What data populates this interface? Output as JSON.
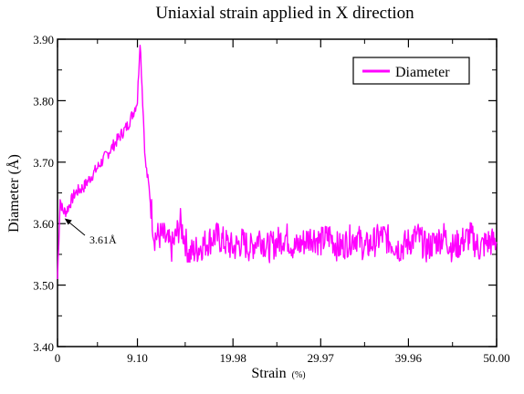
{
  "chart_data": {
    "type": "line",
    "title": "Uniaxial strain applied in X direction",
    "xlabel": "Strain",
    "xlabel_unit": "(%)",
    "ylabel": "Diameter (Å)",
    "xlim": [
      0,
      50
    ],
    "ylim": [
      3.4,
      3.9
    ],
    "x_ticks": [
      0,
      9.1,
      19.98,
      29.97,
      39.96,
      50.0
    ],
    "x_tick_labels": [
      "0",
      "9.10",
      "19.98",
      "29.97",
      "39.96",
      "50.00"
    ],
    "y_ticks": [
      3.4,
      3.5,
      3.6,
      3.7,
      3.8,
      3.9
    ],
    "y_tick_labels": [
      "3.40",
      "3.50",
      "3.60",
      "3.70",
      "3.80",
      "3.90"
    ],
    "grid": false,
    "legend_position": "top-right",
    "series": [
      {
        "name": "Diameter",
        "color": "#ff00ff",
        "x": [
          0,
          0.3,
          0.6,
          1,
          2,
          3,
          4,
          5,
          6,
          7,
          8,
          8.6,
          9.1,
          9.4,
          9.7,
          10,
          10.5,
          11,
          12,
          13,
          14,
          15,
          16,
          17,
          18,
          19,
          20,
          21,
          22,
          23,
          24,
          25,
          26,
          27,
          28,
          29,
          30,
          31,
          32,
          33,
          34,
          35,
          36,
          37,
          38,
          39,
          40,
          41,
          42,
          43,
          44,
          45,
          46,
          47,
          48,
          49,
          50
        ],
        "y": [
          3.51,
          3.64,
          3.62,
          3.62,
          3.65,
          3.66,
          3.68,
          3.7,
          3.72,
          3.74,
          3.76,
          3.78,
          3.8,
          3.9,
          3.8,
          3.7,
          3.65,
          3.58,
          3.58,
          3.56,
          3.6,
          3.55,
          3.56,
          3.57,
          3.58,
          3.57,
          3.56,
          3.57,
          3.56,
          3.58,
          3.56,
          3.57,
          3.58,
          3.56,
          3.57,
          3.58,
          3.57,
          3.58,
          3.56,
          3.57,
          3.58,
          3.56,
          3.57,
          3.58,
          3.57,
          3.56,
          3.57,
          3.58,
          3.56,
          3.57,
          3.58,
          3.56,
          3.57,
          3.58,
          3.56,
          3.57,
          3.57
        ]
      }
    ],
    "annotations": [
      {
        "text": "3.61Å",
        "x": 0.6,
        "y": 3.61
      }
    ]
  }
}
